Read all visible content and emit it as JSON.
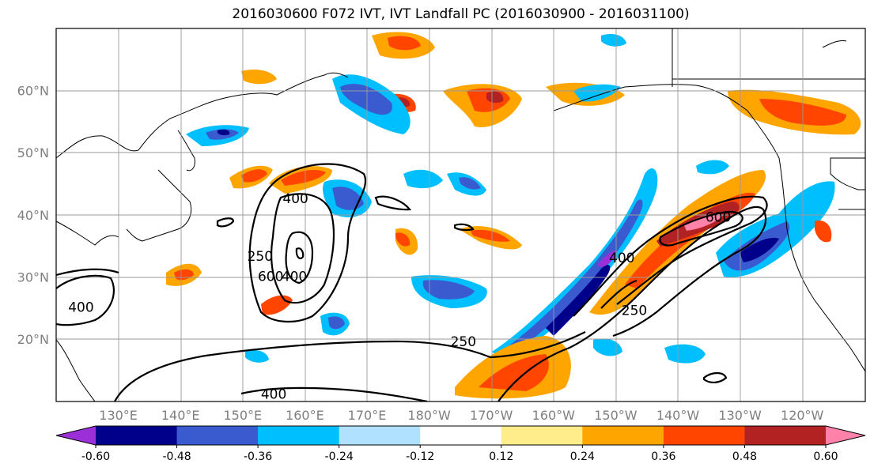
{
  "title": "2016030600 F072 IVT, IVT Landfall PC (2016030900 - 2016031100)",
  "lat_labels": [
    "60°N",
    "50°N",
    "40°N",
    "30°N",
    "20°N"
  ],
  "lon_labels": [
    "130°E",
    "140°E",
    "150°E",
    "160°E",
    "170°E",
    "180°W",
    "170°W",
    "160°W",
    "150°W",
    "140°W",
    "130°W",
    "120°W"
  ],
  "colorbar": {
    "colors": [
      "#9b30d9",
      "#00008b",
      "#3a5bd0",
      "#00bfff",
      "#b0e2ff",
      "#ffffff",
      "#ffec8b",
      "#ffa500",
      "#ff4500",
      "#b22222",
      "#ff82ab"
    ],
    "ticks": [
      "-0.60",
      "-0.48",
      "-0.36",
      "-0.24",
      "-0.12",
      "0.12",
      "0.24",
      "0.36",
      "0.48",
      "0.60"
    ]
  },
  "contour_labels": [
    {
      "text": "400",
      "lon": 158.5,
      "lat": 42.5
    },
    {
      "text": "250",
      "lon": 152.8,
      "lat": 33.2
    },
    {
      "text": "600",
      "lon": 154.5,
      "lat": 30.0
    },
    {
      "text": "400",
      "lon": 158.3,
      "lat": 30.0
    },
    {
      "text": "400",
      "lon": 124.0,
      "lat": 25.0
    },
    {
      "text": "250",
      "lon": 185.5,
      "lat": 19.5
    },
    {
      "text": "400",
      "lon": 155.0,
      "lat": 11.0
    },
    {
      "text": "400",
      "lon": 211.0,
      "lat": 33.0
    },
    {
      "text": "600",
      "lon": 226.5,
      "lat": 39.5
    },
    {
      "text": "250",
      "lon": 213.0,
      "lat": 24.5
    }
  ]
}
